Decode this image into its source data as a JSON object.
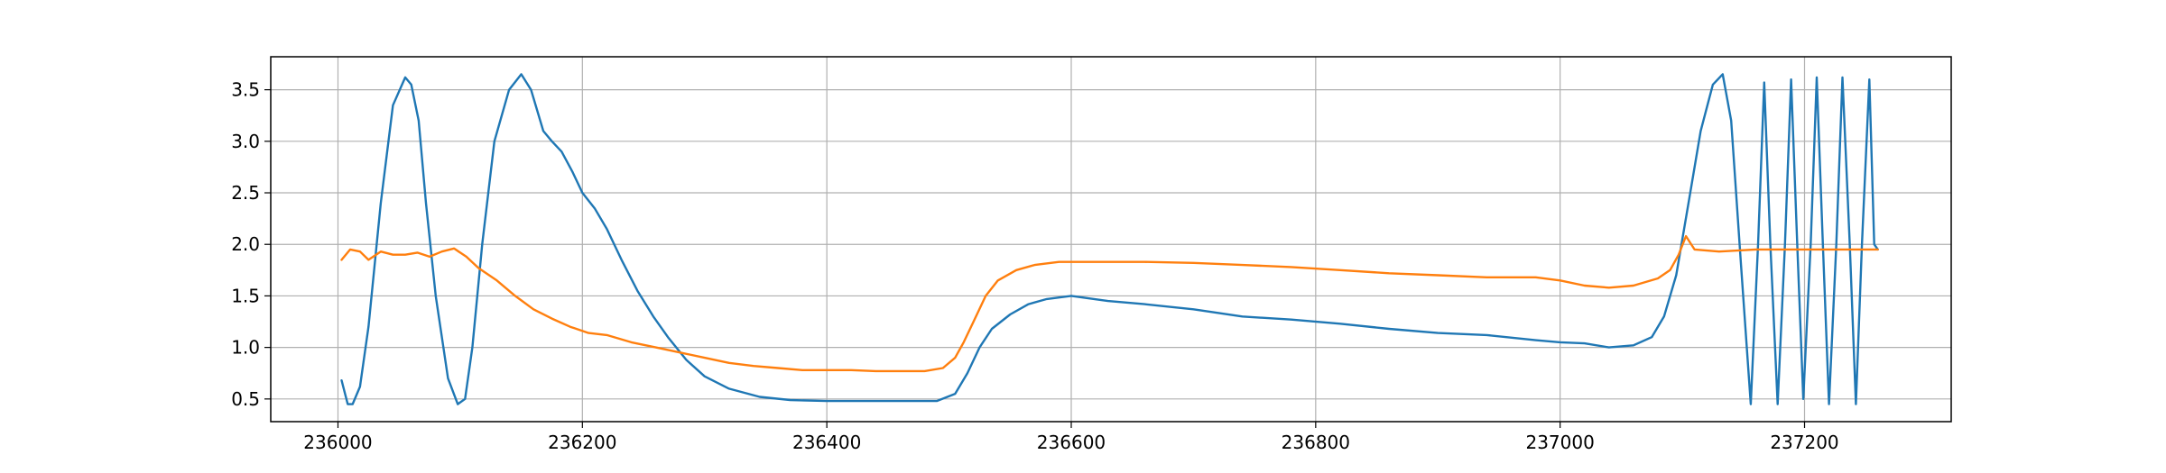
{
  "chart_data": {
    "type": "line",
    "title": "",
    "xlabel": "",
    "ylabel": "",
    "xlim": [
      235945,
      237320
    ],
    "ylim": [
      0.28,
      3.82
    ],
    "grid": true,
    "legend": "none",
    "x_ticks": [
      236000,
      236200,
      236400,
      236600,
      236800,
      237000,
      237200
    ],
    "y_ticks": [
      0.5,
      1.0,
      1.5,
      2.0,
      2.5,
      3.0,
      3.5
    ],
    "x_tick_labels": [
      "236000",
      "236200",
      "236400",
      "236600",
      "236800",
      "237000",
      "237200"
    ],
    "y_tick_labels": [
      "0.5",
      "1.0",
      "1.5",
      "2.0",
      "2.5",
      "3.0",
      "3.5"
    ],
    "series": [
      {
        "color": "#1f77b4",
        "x": [
          236003,
          236008,
          236012,
          236018,
          236025,
          236035,
          236045,
          236055,
          236060,
          236066,
          236072,
          236080,
          236090,
          236098,
          236104,
          236110,
          236118,
          236128,
          236140,
          236150,
          236158,
          236163,
          236168,
          236175,
          236183,
          236192,
          236200,
          236210,
          236220,
          236232,
          236245,
          236258,
          236270,
          236285,
          236300,
          236320,
          236345,
          236370,
          236400,
          236430,
          236460,
          236490,
          236505,
          236515,
          236525,
          236535,
          236550,
          236565,
          236580,
          236600,
          236630,
          236660,
          236700,
          236740,
          236780,
          236820,
          236860,
          236900,
          236940,
          236980,
          237000,
          237020,
          237040,
          237060,
          237075,
          237085,
          237095,
          237105,
          237115,
          237125,
          237133,
          237140,
          237148,
          237156,
          237162,
          237167,
          237172,
          237178,
          237184,
          237189,
          237194,
          237199,
          237205,
          237210,
          237215,
          237220,
          237226,
          237231,
          237237,
          237242,
          237247,
          237253,
          237257,
          237260
        ],
        "y": [
          0.68,
          0.45,
          0.45,
          0.62,
          1.2,
          2.4,
          3.35,
          3.62,
          3.55,
          3.2,
          2.4,
          1.5,
          0.7,
          0.45,
          0.5,
          1.0,
          2.0,
          3.0,
          3.5,
          3.65,
          3.5,
          3.3,
          3.1,
          3.0,
          2.9,
          2.7,
          2.5,
          2.35,
          2.15,
          1.85,
          1.55,
          1.3,
          1.1,
          0.88,
          0.72,
          0.6,
          0.52,
          0.49,
          0.48,
          0.48,
          0.48,
          0.48,
          0.55,
          0.75,
          1.0,
          1.18,
          1.32,
          1.42,
          1.47,
          1.5,
          1.45,
          1.42,
          1.37,
          1.3,
          1.27,
          1.23,
          1.18,
          1.14,
          1.12,
          1.07,
          1.05,
          1.04,
          1.0,
          1.02,
          1.1,
          1.3,
          1.7,
          2.4,
          3.1,
          3.55,
          3.65,
          3.2,
          1.8,
          0.45,
          2.0,
          3.57,
          2.0,
          0.45,
          2.0,
          3.6,
          2.0,
          0.5,
          2.0,
          3.62,
          2.0,
          0.45,
          2.0,
          3.62,
          2.0,
          0.45,
          2.0,
          3.6,
          2.0,
          1.95
        ]
      },
      {
        "color": "#ff7f0e",
        "x": [
          236003,
          236010,
          236018,
          236025,
          236035,
          236045,
          236055,
          236065,
          236075,
          236085,
          236095,
          236105,
          236115,
          236130,
          236145,
          236160,
          236175,
          236190,
          236205,
          236220,
          236240,
          236260,
          236280,
          236300,
          236320,
          236340,
          236360,
          236380,
          236400,
          236420,
          236440,
          236460,
          236480,
          236495,
          236505,
          236512,
          236520,
          236530,
          236540,
          236555,
          236570,
          236590,
          236620,
          236660,
          236700,
          236740,
          236780,
          236820,
          236860,
          236900,
          236940,
          236980,
          237000,
          237020,
          237040,
          237060,
          237080,
          237090,
          237097,
          237103,
          237110,
          237130,
          237160,
          237200,
          237240,
          237260
        ],
        "y": [
          1.85,
          1.95,
          1.93,
          1.85,
          1.93,
          1.9,
          1.9,
          1.92,
          1.88,
          1.93,
          1.96,
          1.88,
          1.77,
          1.65,
          1.5,
          1.37,
          1.28,
          1.2,
          1.14,
          1.12,
          1.05,
          1.0,
          0.95,
          0.9,
          0.85,
          0.82,
          0.8,
          0.78,
          0.78,
          0.78,
          0.77,
          0.77,
          0.77,
          0.8,
          0.9,
          1.05,
          1.25,
          1.5,
          1.65,
          1.75,
          1.8,
          1.83,
          1.83,
          1.83,
          1.82,
          1.8,
          1.78,
          1.75,
          1.72,
          1.7,
          1.68,
          1.68,
          1.65,
          1.6,
          1.58,
          1.6,
          1.67,
          1.75,
          1.9,
          2.08,
          1.95,
          1.93,
          1.95,
          1.95,
          1.95,
          1.95
        ]
      }
    ]
  }
}
